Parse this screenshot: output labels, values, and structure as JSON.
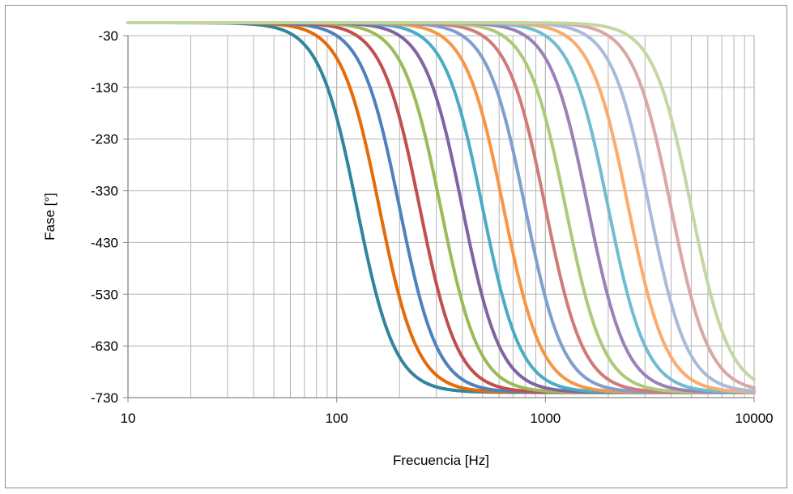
{
  "chart_data": {
    "type": "line",
    "title": "",
    "xlabel": "Frecuencia [Hz]",
    "ylabel": "Fase [°]",
    "xscale": "log",
    "xlim": [
      10,
      10000
    ],
    "ylim": [
      -730,
      -30
    ],
    "xticks": [
      10,
      100,
      1000,
      10000
    ],
    "xtick_labels": [
      "10",
      "100",
      "1000",
      "10000"
    ],
    "yticks": [
      -30,
      -130,
      -230,
      -330,
      -430,
      -530,
      -630,
      -730
    ],
    "ytick_labels": [
      "-30",
      "-130",
      "-230",
      "-330",
      "-430",
      "-530",
      "-630",
      "-730"
    ],
    "grid": true,
    "legend": "none",
    "curve_shape": {
      "start_phase": -5,
      "end_phase": -720,
      "center_phase": -360
    },
    "series": [
      {
        "center_hz": 125,
        "color": "#31859c"
      },
      {
        "center_hz": 160,
        "color": "#e36c09"
      },
      {
        "center_hz": 200,
        "color": "#4f81bd"
      },
      {
        "center_hz": 250,
        "color": "#c0504d"
      },
      {
        "center_hz": 315,
        "color": "#9bbb59"
      },
      {
        "center_hz": 400,
        "color": "#8064a2"
      },
      {
        "center_hz": 500,
        "color": "#4bacc6"
      },
      {
        "center_hz": 630,
        "color": "#f79646"
      },
      {
        "center_hz": 800,
        "color": "#7f9fcf"
      },
      {
        "center_hz": 1000,
        "color": "#d07b79"
      },
      {
        "center_hz": 1250,
        "color": "#afc97a"
      },
      {
        "center_hz": 1600,
        "color": "#9a82b8"
      },
      {
        "center_hz": 2000,
        "color": "#71bcd2"
      },
      {
        "center_hz": 2500,
        "color": "#faab6e"
      },
      {
        "center_hz": 3150,
        "color": "#a9bbdb"
      },
      {
        "center_hz": 4000,
        "color": "#d8a7a6"
      },
      {
        "center_hz": 5000,
        "color": "#c4d7a3"
      }
    ]
  }
}
